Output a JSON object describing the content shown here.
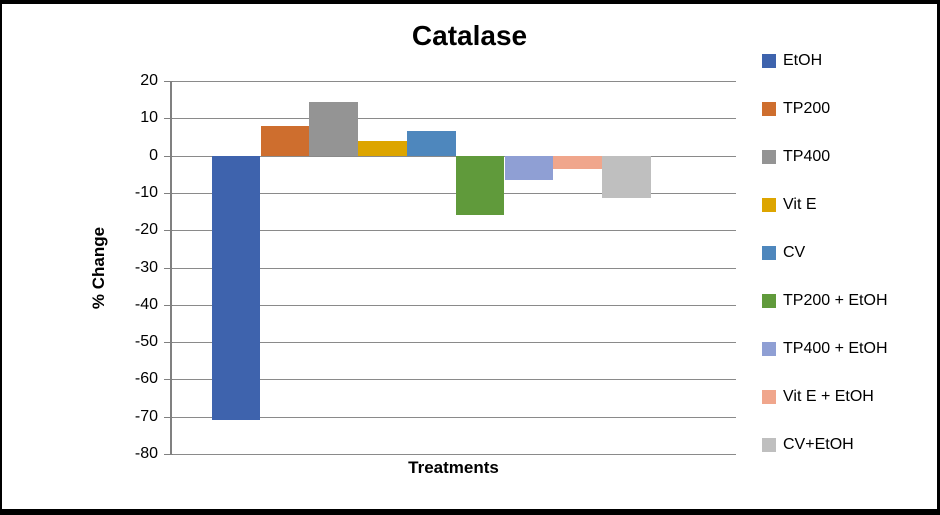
{
  "chart_data": {
    "type": "bar",
    "title": "Catalase",
    "xlabel": "Treatments",
    "ylabel": "% Change",
    "ylim": [
      -80,
      20
    ],
    "ytick_step": 10,
    "grid": true,
    "legend_position": "right",
    "categories": [
      "Treatments"
    ],
    "series": [
      {
        "name": "EtOH",
        "value": -71,
        "color": "#3e63ad"
      },
      {
        "name": "TP200",
        "value": 8,
        "color": "#ce6e2e"
      },
      {
        "name": "TP400",
        "value": 14.5,
        "color": "#949494"
      },
      {
        "name": "Vit E",
        "value": 4,
        "color": "#dda500"
      },
      {
        "name": "CV",
        "value": 6.5,
        "color": "#4e87bd"
      },
      {
        "name": "TP200 + EtOH",
        "value": -16,
        "color": "#609a3b"
      },
      {
        "name": "TP400 + EtOH",
        "value": -6.5,
        "color": "#8f9fd4"
      },
      {
        "name": "Vit E + EtOH",
        "value": -3.5,
        "color": "#f0a68c"
      },
      {
        "name": "CV+EtOH",
        "value": -11.5,
        "color": "#bfbfbf"
      }
    ]
  }
}
